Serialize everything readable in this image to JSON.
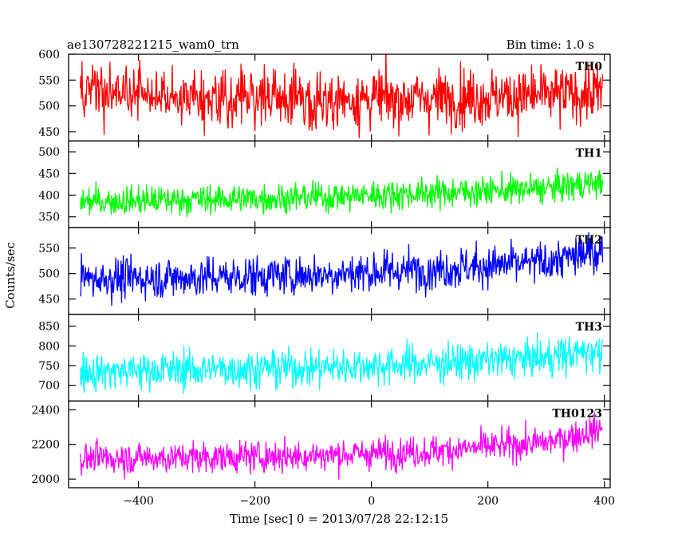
{
  "header": {
    "left": "ae130728221215_wam0_trn",
    "right": "Bin time: 1.0 s"
  },
  "axes": {
    "xlabel": "Time [sec] 0 = 2013/07/28 22:12:15",
    "ylabel": "Counts/sec"
  },
  "chart_data": {
    "type": "line",
    "shared_x": {
      "unit": "sec",
      "lim": [
        -520,
        410
      ],
      "ticks": [
        -400,
        -200,
        0,
        200,
        400
      ],
      "sampling": "1.0 s bins from -500 to 397"
    },
    "grid": false,
    "legend": "panel labels at top-right of each panel",
    "panels": [
      {
        "label": "TH0",
        "color": "#ff0000",
        "ylim": [
          432,
          600
        ],
        "yticks": [
          450,
          500,
          550,
          600
        ],
        "trend": {
          "x": [
            -500,
            -300,
            -100,
            100,
            300,
            397
          ],
          "y": [
            525,
            518,
            512,
            515,
            520,
            525
          ]
        },
        "noise_sd": 28
      },
      {
        "label": "TH1",
        "color": "#00ff00",
        "ylim": [
          325,
          525
        ],
        "yticks": [
          350,
          400,
          450,
          500
        ],
        "trend": {
          "x": [
            -500,
            -300,
            -100,
            100,
            300,
            397
          ],
          "y": [
            385,
            390,
            395,
            405,
            415,
            430
          ]
        },
        "noise_sd": 17
      },
      {
        "label": "TH2",
        "color": "#0000ff",
        "ylim": [
          420,
          590
        ],
        "yticks": [
          450,
          500,
          550
        ],
        "trend": {
          "x": [
            -500,
            -300,
            -100,
            100,
            300,
            397
          ],
          "y": [
            490,
            492,
            498,
            508,
            522,
            545
          ]
        },
        "noise_sd": 20
      },
      {
        "label": "TH3",
        "color": "#00ffff",
        "ylim": [
          660,
          880
        ],
        "yticks": [
          700,
          750,
          800,
          850
        ],
        "trend": {
          "x": [
            -500,
            -300,
            -100,
            100,
            300,
            397
          ],
          "y": [
            735,
            740,
            745,
            755,
            770,
            790
          ]
        },
        "noise_sd": 24
      },
      {
        "label": "TH0123",
        "color": "#ff00ff",
        "ylim": [
          1950,
          2450
        ],
        "yticks": [
          2000,
          2200,
          2400
        ],
        "trend": {
          "x": [
            -500,
            -300,
            -100,
            100,
            300,
            397
          ],
          "y": [
            2120,
            2125,
            2135,
            2160,
            2210,
            2290
          ]
        },
        "noise_sd": 45
      }
    ]
  }
}
